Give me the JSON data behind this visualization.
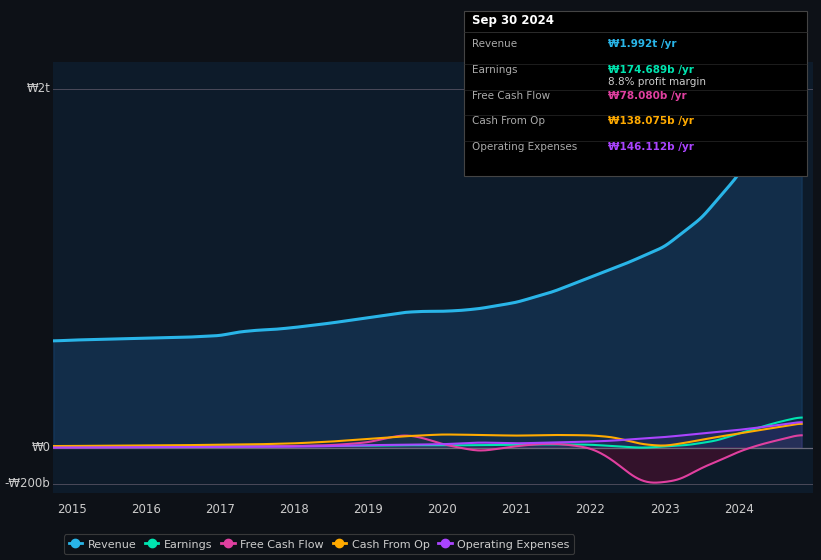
{
  "background_color": "#0d1117",
  "chart_bg_color": "#0d1b2a",
  "title": "Sep 30 2024",
  "y_label_top": "₩2t",
  "y_label_zero": "₩0",
  "y_label_bottom": "-₩200b",
  "x_labels": [
    "2015",
    "2016",
    "2017",
    "2018",
    "2019",
    "2020",
    "2021",
    "2022",
    "2023",
    "2024"
  ],
  "legend": [
    {
      "label": "Revenue",
      "color": "#29b5e8"
    },
    {
      "label": "Earnings",
      "color": "#00e5b0"
    },
    {
      "label": "Free Cash Flow",
      "color": "#e040a0"
    },
    {
      "label": "Cash From Op",
      "color": "#ffaa00"
    },
    {
      "label": "Operating Expenses",
      "color": "#aa44ff"
    }
  ],
  "revenue_color": "#29b5e8",
  "earnings_color": "#00e5b0",
  "fcf_color": "#e040a0",
  "cashfromop_color": "#ffaa00",
  "opex_color": "#aa44ff",
  "revenue_fill_alpha": 0.4,
  "tooltip_rows": [
    {
      "label": "Revenue",
      "value": "₩1.992t /yr",
      "color": "#29b5e8",
      "sub": null
    },
    {
      "label": "Earnings",
      "value": "₩174.689b /yr",
      "color": "#00e5b0",
      "sub": "8.8% profit margin"
    },
    {
      "label": "Free Cash Flow",
      "value": "₩78.080b /yr",
      "color": "#e040a0",
      "sub": null
    },
    {
      "label": "Cash From Op",
      "value": "₩138.075b /yr",
      "color": "#ffaa00",
      "sub": null
    },
    {
      "label": "Operating Expenses",
      "value": "₩146.112b /yr",
      "color": "#aa44ff",
      "sub": null
    }
  ]
}
